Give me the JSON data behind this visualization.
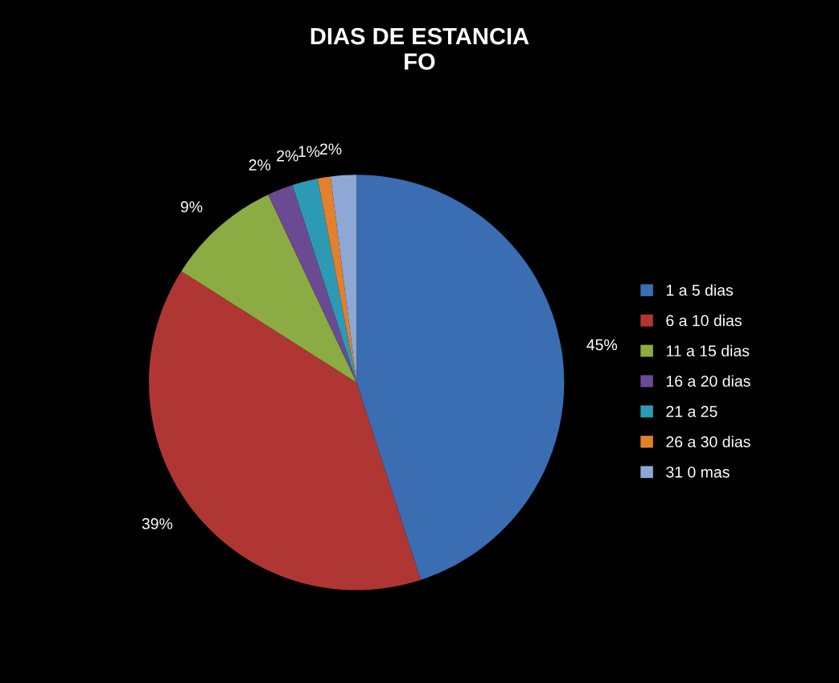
{
  "chart_data": {
    "type": "pie",
    "title": "DIAS DE ESTANCIA\nFO",
    "categories": [
      "1 a 5 dias",
      "6 a 10 dias",
      "11 a 15 dias",
      "16 a 20 dias",
      "21 a 25",
      "26 a 30 dias",
      "31 0 mas"
    ],
    "values": [
      45,
      39,
      9,
      2,
      2,
      1,
      2
    ],
    "colors": [
      "#3a6db2",
      "#b03633",
      "#8aac42",
      "#6c4a93",
      "#2d9ab5",
      "#e3802b",
      "#8ea8d5"
    ],
    "value_labels": [
      "45%",
      "39%",
      "9%",
      "2%",
      "2%",
      "1%",
      "2%"
    ],
    "legend": "right"
  }
}
